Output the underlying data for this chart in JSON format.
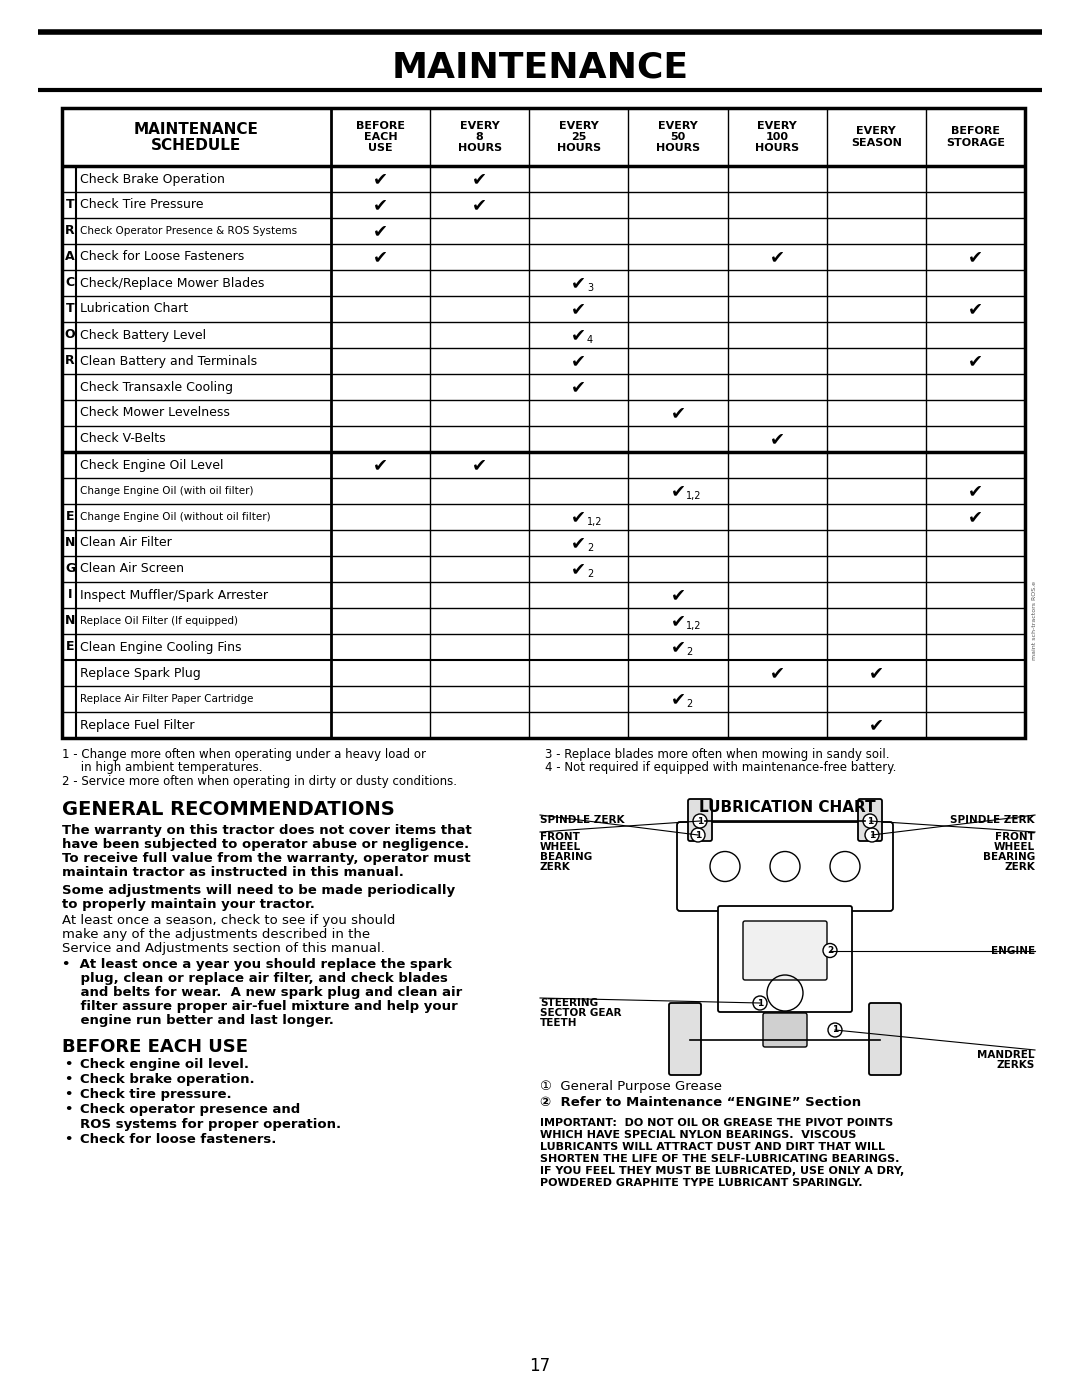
{
  "title": "MAINTENANCE",
  "page_number": "17",
  "col_headers": [
    "BEFORE\nEACH\nUSE",
    "EVERY\n8\nHOURS",
    "EVERY\n25\nHOURS",
    "EVERY\n50\nHOURS",
    "EVERY\n100\nHOURS",
    "EVERY\nSEASON",
    "BEFORE\nSTORAGE"
  ],
  "tractor_rows": [
    "Check Brake Operation",
    "Check Tire Pressure",
    "Check Operator Presence & ROS Systems",
    "Check for Loose Fasteners",
    "Check/Replace Mower Blades",
    "Lubrication Chart",
    "Check Battery Level",
    "Clean Battery and Terminals",
    "Check Transaxle Cooling",
    "Check Mower Levelness",
    "Check V-Belts"
  ],
  "tractor_letters": [
    "",
    "T",
    "R",
    "A",
    "C",
    "T",
    "O",
    "R",
    "",
    "",
    ""
  ],
  "engine_rows": [
    "Check Engine Oil Level",
    "Change Engine Oil (with oil filter)",
    "Change Engine Oil (without oil filter)",
    "Clean Air Filter",
    "Clean Air Screen",
    "Inspect Muffler/Spark Arrester",
    "Replace Oil Filter (If equipped)",
    "Clean Engine Cooling Fins",
    "Replace Spark Plug",
    "Replace Air Filter Paper Cartridge",
    "Replace Fuel Filter"
  ],
  "engine_letters": [
    "",
    "",
    "E",
    "N",
    "G",
    "I",
    "N",
    "E",
    "",
    "",
    ""
  ],
  "tractor_checks": [
    [
      1,
      1,
      0,
      0,
      0,
      0,
      0
    ],
    [
      1,
      1,
      0,
      0,
      0,
      0,
      0
    ],
    [
      1,
      0,
      0,
      0,
      0,
      0,
      0
    ],
    [
      1,
      0,
      0,
      0,
      1,
      0,
      1
    ],
    [
      0,
      0,
      "3",
      0,
      0,
      0,
      0
    ],
    [
      0,
      0,
      1,
      0,
      0,
      0,
      1
    ],
    [
      0,
      0,
      "4",
      0,
      0,
      0,
      0
    ],
    [
      0,
      0,
      1,
      0,
      0,
      0,
      1
    ],
    [
      0,
      0,
      1,
      0,
      0,
      0,
      0
    ],
    [
      0,
      0,
      0,
      1,
      0,
      0,
      0
    ],
    [
      0,
      0,
      0,
      0,
      1,
      0,
      0
    ]
  ],
  "engine_checks": [
    [
      1,
      1,
      0,
      0,
      0,
      0,
      0
    ],
    [
      0,
      0,
      0,
      "1,2",
      0,
      0,
      1
    ],
    [
      0,
      0,
      "1,2",
      0,
      0,
      0,
      1
    ],
    [
      0,
      0,
      "2",
      0,
      0,
      0,
      0
    ],
    [
      0,
      0,
      "2",
      0,
      0,
      0,
      0
    ],
    [
      0,
      0,
      0,
      1,
      0,
      0,
      0
    ],
    [
      0,
      0,
      0,
      "1,2",
      0,
      0,
      0
    ],
    [
      0,
      0,
      0,
      "2",
      0,
      0,
      0
    ],
    [
      0,
      0,
      0,
      0,
      1,
      1,
      0
    ],
    [
      0,
      0,
      0,
      "2",
      0,
      0,
      0
    ],
    [
      0,
      0,
      0,
      0,
      0,
      1,
      0
    ]
  ],
  "footnote1": "1 - Change more often when operating under a heavy load or",
  "footnote1b": "     in high ambient temperatures.",
  "footnote2": "2 - Service more often when operating in dirty or dusty conditions.",
  "footnote3": "3 - Replace blades more often when mowing in sandy soil.",
  "footnote4": "4 - Not required if equipped with maintenance-free battery.",
  "general_rec_title": "GENERAL RECOMMENDATIONS",
  "para1": "The warranty on this tractor does not cover items that\nhave been subjected to operator abuse or negligence.\nTo receive full value from the warranty, operator must\nmaintain tractor as instructed in this manual.",
  "para2": "Some adjustments will need to be made periodically\nto properly maintain your tractor.",
  "para3": "At least once a season, check to see if you should\nmake any of the adjustments described in the\nService and Adjustments section of this manual.",
  "para4a": "•  At least once a year you should replace the spark",
  "para4b": "    plug, clean or replace air filter, and check blades",
  "para4c": "    and belts for wear.  A new spark plug and clean air",
  "para4d": "    filter assure proper air-fuel mixture and help your",
  "para4e": "    engine run better and last longer.",
  "before_each_use_title": "BEFORE EACH USE",
  "beu_items": [
    "Check engine oil level.",
    "Check brake operation.",
    "Check tire pressure.",
    "Check operator presence and",
    "ROS systems for proper operation.",
    "Check for loose fasteners."
  ],
  "beu_indent": [
    0,
    0,
    0,
    0,
    1,
    0
  ],
  "lubrication_chart_title": "LUBRICATION CHART",
  "legend1": "①  General Purpose Grease",
  "legend2": "②  Refer to Maintenance “ENGINE” Section",
  "important": "IMPORTANT:  DO NOT OIL OR GREASE THE PIVOT POINTS\nWHICH HAVE SPECIAL NYLON BEARINGS.  VISCOUS\nLUBRICANTS WILL ATTRACT DUST AND DIRT THAT WILL\nSHORTEN THE LIFE OF THE SELF-LUBRICATING BEARINGS.\nIF YOU FEEL THEY MUST BE LUBRICATED, USE ONLY A DRY,\nPOWDERED GRAPHITE TYPE LUBRICANT SPARINGLY."
}
